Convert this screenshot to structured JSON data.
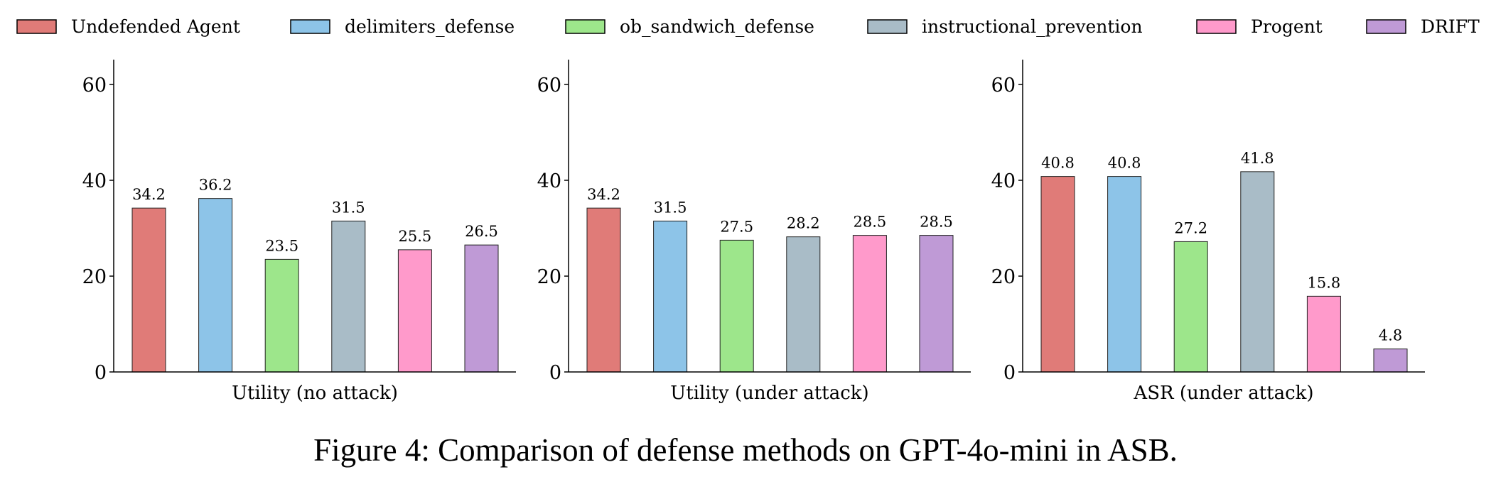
{
  "chart_data": [
    {
      "type": "bar",
      "xlabel": "Utility (no attack)",
      "categories": [
        "Undefended Agent",
        "delimiters_defense",
        "ob_sandwich_defense",
        "instructional_prevention",
        "Progent",
        "DRIFT"
      ],
      "values": [
        34.2,
        36.2,
        23.5,
        31.5,
        25.5,
        26.5
      ],
      "ylim": [
        0,
        65
      ],
      "yticks": [
        0,
        20,
        40,
        60
      ]
    },
    {
      "type": "bar",
      "xlabel": "Utility (under attack)",
      "categories": [
        "Undefended Agent",
        "delimiters_defense",
        "ob_sandwich_defense",
        "instructional_prevention",
        "Progent",
        "DRIFT"
      ],
      "values": [
        34.2,
        31.5,
        27.5,
        28.2,
        28.5,
        28.5
      ],
      "ylim": [
        0,
        65
      ],
      "yticks": [
        0,
        20,
        40,
        60
      ]
    },
    {
      "type": "bar",
      "xlabel": "ASR (under attack)",
      "categories": [
        "Undefended Agent",
        "delimiters_defense",
        "ob_sandwich_defense",
        "instructional_prevention",
        "Progent",
        "DRIFT"
      ],
      "values": [
        40.8,
        40.8,
        27.2,
        41.8,
        15.8,
        4.8
      ],
      "ylim": [
        0,
        65
      ],
      "yticks": [
        0,
        20,
        40,
        60
      ]
    }
  ],
  "legend": {
    "placement": "top",
    "items": [
      {
        "label": "Undefended Agent",
        "color": "#e07b78"
      },
      {
        "label": "delimiters_defense",
        "color": "#8dc4e8"
      },
      {
        "label": "ob_sandwich_defense",
        "color": "#9de68b"
      },
      {
        "label": "instructional_prevention",
        "color": "#a9bcc7"
      },
      {
        "label": "Progent",
        "color": "#ff9acb"
      },
      {
        "label": "DRIFT",
        "color": "#bf9ad6"
      }
    ]
  },
  "caption": "Figure 4: Comparison of defense methods on GPT-4o-mini in ASB."
}
